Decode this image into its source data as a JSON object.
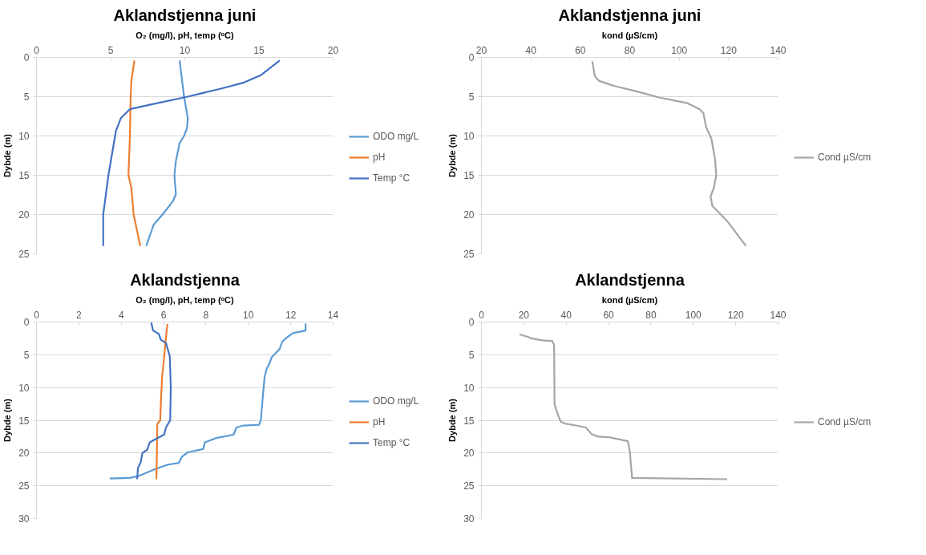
{
  "chart_data": [
    {
      "type": "line",
      "title": "Aklandstjenna juni",
      "xlabel": "O₂ (mg/l), pH, temp (ᵒC)",
      "ylabel": "Dybde (m)",
      "xlim": [
        0,
        20
      ],
      "xticks": [
        0,
        5,
        10,
        15,
        20
      ],
      "ylim": [
        25,
        0
      ],
      "yticks": [
        0,
        5,
        10,
        15,
        20,
        25
      ],
      "grid": "y",
      "legend": "right",
      "series": [
        {
          "name": "ODO mg/L",
          "color": "#5b9bd5",
          "x": [
            9.65,
            9.95,
            10.2,
            10.15,
            9.95,
            9.65,
            9.4,
            9.3,
            9.4,
            9.2,
            8.5,
            7.9,
            7.4
          ],
          "values": [
            0.4,
            5,
            7.7,
            9,
            10,
            10.9,
            13.2,
            15,
            17.4,
            18.3,
            20,
            21.3,
            24
          ]
        },
        {
          "name": "pH",
          "color": "#ed7d31",
          "x": [
            6.6,
            6.4,
            6.35,
            6.3,
            6.2,
            6.4,
            6.55,
            7.0
          ],
          "values": [
            0.4,
            3,
            5,
            10,
            15,
            16.6,
            20,
            24
          ]
        },
        {
          "name": "Temp °C",
          "color": "#4472c4",
          "x": [
            16.4,
            15.1,
            14.0,
            12.4,
            10.2,
            7.7,
            6.3,
            5.7,
            5.35,
            5.3,
            4.85,
            4.5,
            4.5
          ],
          "values": [
            0.4,
            2.3,
            3.2,
            4,
            5,
            6,
            6.6,
            7.7,
            9.4,
            10,
            15,
            20,
            24
          ]
        }
      ]
    },
    {
      "type": "line",
      "title": "Aklandstjenna juni",
      "xlabel": "kond (µS/cm)",
      "ylabel": "Dybde (m)",
      "xlim": [
        20,
        140
      ],
      "xticks": [
        20,
        40,
        60,
        80,
        100,
        120,
        140
      ],
      "ylim": [
        25,
        0
      ],
      "yticks": [
        0,
        5,
        10,
        15,
        20,
        25
      ],
      "grid": "y",
      "legend": "right",
      "series": [
        {
          "name": "Cond µS/cm",
          "color": "#a5a5a5",
          "x": [
            64.8,
            65.9,
            67.6,
            73.3,
            83.6,
            91.8,
            103,
            108.3,
            109.8,
            110.9,
            113,
            114.5,
            115,
            114,
            112.7,
            113.4,
            119.6,
            127
          ],
          "values": [
            0.5,
            2.4,
            3.0,
            3.6,
            4.4,
            5.1,
            5.8,
            6.6,
            7.1,
            8.9,
            10.3,
            13,
            15,
            16.6,
            17.7,
            18.9,
            20.9,
            24
          ]
        }
      ]
    },
    {
      "type": "line",
      "title": "Aklandstjenna",
      "xlabel": "O₂ (mg/l), pH, temp (ᵒC)",
      "ylabel": "Dybde (m)",
      "xlim": [
        0,
        14
      ],
      "xticks": [
        0,
        2,
        4,
        6,
        8,
        10,
        12,
        14
      ],
      "ylim": [
        30,
        0
      ],
      "yticks": [
        0,
        5,
        10,
        15,
        20,
        25,
        30
      ],
      "grid": "y",
      "legend": "right",
      "series": [
        {
          "name": "ODO mg/L",
          "color": "#5b9bd5",
          "x": [
            12.7,
            12.7,
            12.1,
            11.8,
            11.6,
            11.48,
            11.1,
            11.0,
            10.86,
            10.77,
            10.73,
            10.66,
            10.59,
            10.5,
            9.78,
            9.44,
            9.3,
            8.49,
            7.94,
            7.87,
            7.13,
            6.86,
            6.72,
            6.18,
            5.5,
            4.82,
            4.41,
            3.46
          ],
          "values": [
            0.2,
            1.3,
            1.7,
            2.4,
            3.0,
            4.1,
            5.4,
            6.3,
            7.2,
            8.3,
            9.7,
            12.2,
            15,
            15.7,
            15.8,
            16.1,
            17.2,
            17.7,
            18.4,
            19.4,
            19.9,
            20.6,
            21.5,
            21.8,
            22.6,
            23.5,
            23.8,
            23.9
          ]
        },
        {
          "name": "pH",
          "color": "#ed7d31",
          "x": [
            6.18,
            6.1,
            6.04,
            5.93,
            5.88,
            5.84,
            5.7,
            5.68,
            5.66
          ],
          "values": [
            0.3,
            2.7,
            4.9,
            8.3,
            11.6,
            15,
            15.6,
            20.6,
            24
          ]
        },
        {
          "name": "Temp °C",
          "color": "#4472c4",
          "x": [
            5.42,
            5.5,
            5.77,
            5.87,
            6.11,
            6.29,
            6.34,
            6.31,
            6.11,
            6.02,
            5.5,
            5.34,
            5.23,
            5.0,
            4.92,
            4.79,
            4.75
          ],
          "values": [
            0.1,
            1.3,
            1.8,
            2.7,
            3.2,
            5.2,
            10,
            15,
            16.1,
            17.2,
            18.1,
            18.4,
            19.5,
            20,
            21.4,
            22.3,
            24
          ]
        }
      ]
    },
    {
      "type": "line",
      "title": "Aklandstjenna",
      "xlabel": "kond (µS/cm)",
      "ylabel": "Dybde (m)",
      "xlim": [
        0,
        140
      ],
      "xticks": [
        0,
        20,
        40,
        60,
        80,
        100,
        120,
        140
      ],
      "ylim": [
        30,
        0
      ],
      "yticks": [
        0,
        5,
        10,
        15,
        20,
        25,
        30
      ],
      "grid": "y",
      "legend": "right",
      "series": [
        {
          "name": "Cond µS/cm",
          "color": "#a5a5a5",
          "x": [
            18.0,
            22.2,
            23.5,
            28.8,
            33.4,
            34.3,
            34.5,
            35.4,
            36.5,
            37.4,
            39.4,
            44.6,
            49.3,
            51.9,
            55.2,
            60.5,
            69.1,
            70,
            70.7,
            71.1,
            116
          ],
          "values": [
            1.9,
            2.3,
            2.5,
            2.8,
            2.9,
            3.5,
            12.5,
            13.5,
            14.5,
            15.2,
            15.5,
            15.8,
            16.1,
            17.1,
            17.5,
            17.6,
            18.2,
            19.7,
            22.3,
            23.8,
            24.0
          ]
        }
      ]
    }
  ]
}
